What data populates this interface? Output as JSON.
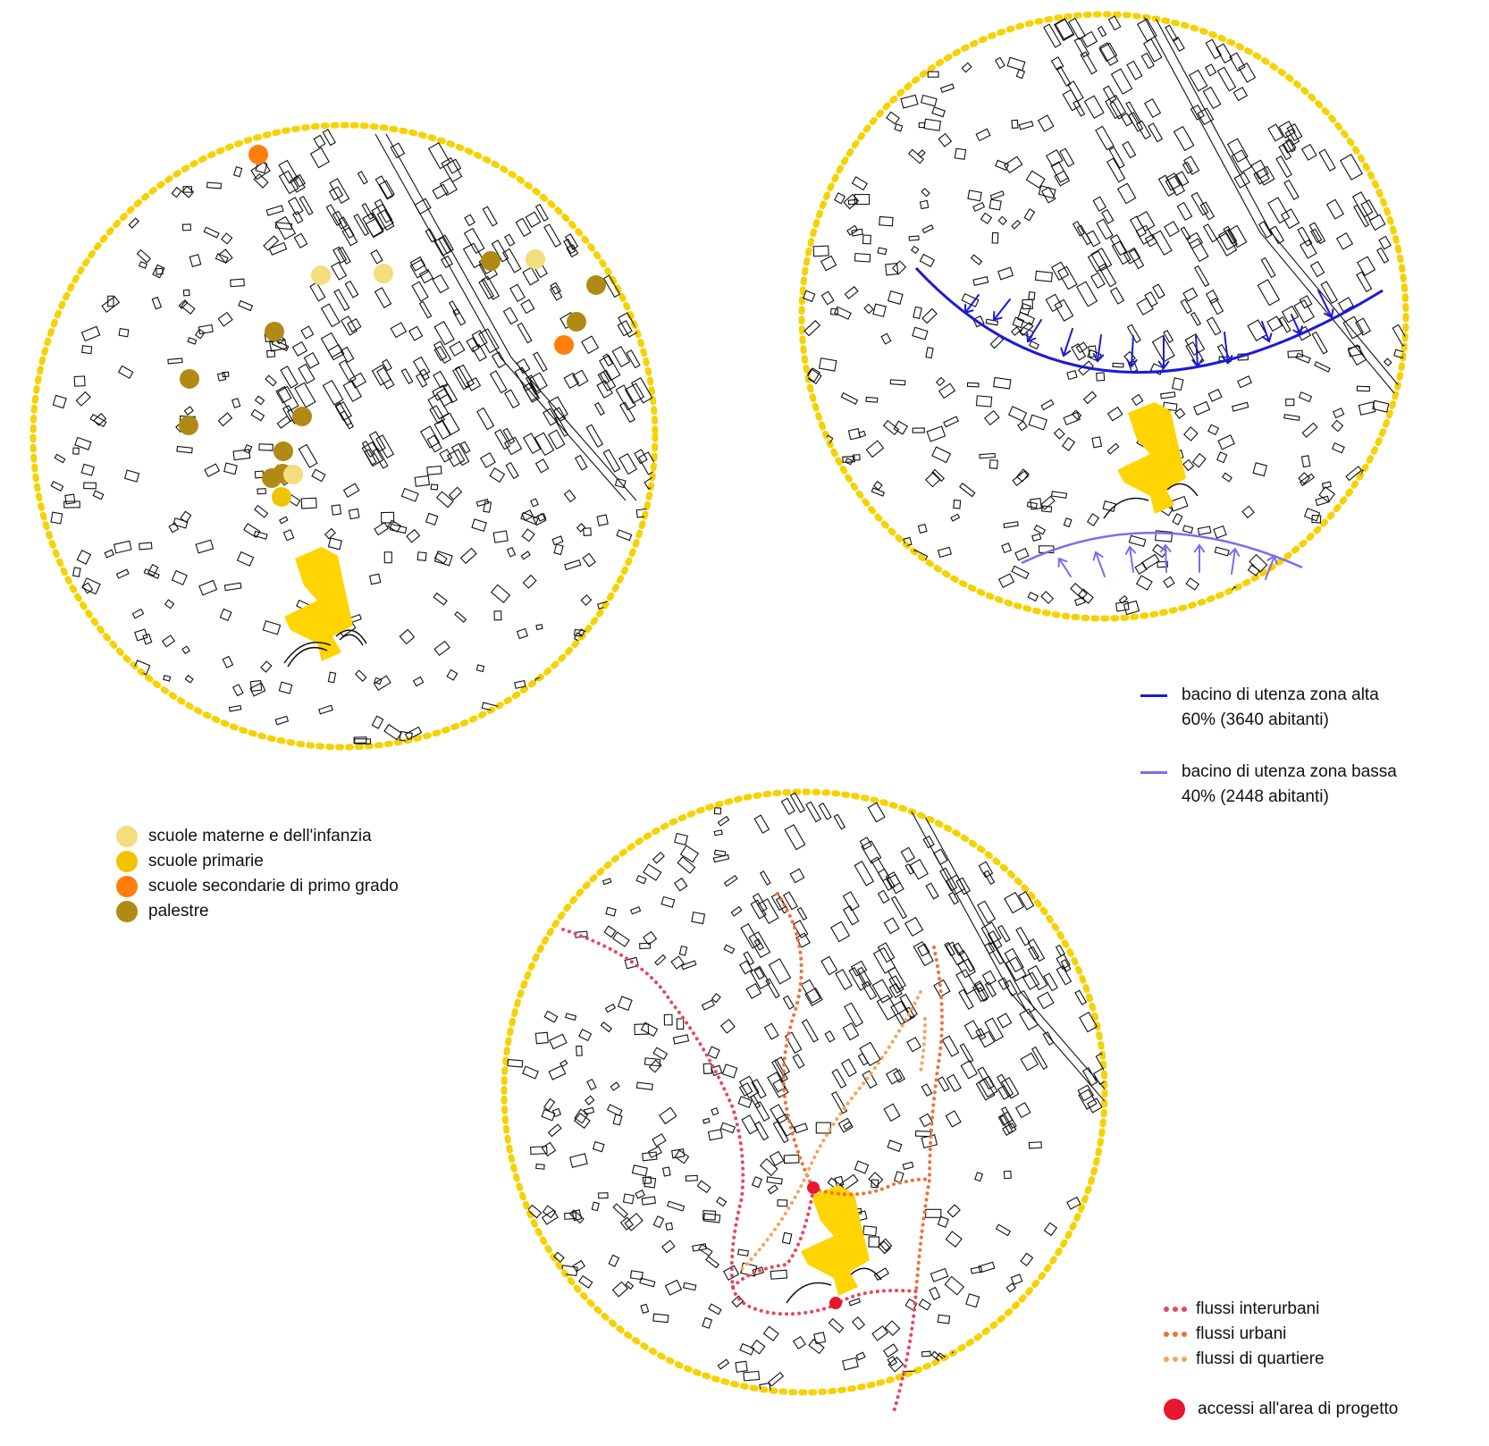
{
  "colors": {
    "ring": "#f5d200",
    "project_area": "#ffd400",
    "buildings": "#111111",
    "scuole_materne": "#f3dd7c",
    "scuole_primarie": "#f0c400",
    "scuole_secondarie": "#ff7f0a",
    "palestre": "#b08a12",
    "bacino_alta": "#1a1ad8",
    "bacino_bassa": "#7b6cf2",
    "flussi_interurbani": "#e8475d",
    "flussi_urbani": "#f0703a",
    "flussi_quartiere": "#f5a35a",
    "accessi": "#e8172f"
  },
  "map1": {
    "legend": [
      {
        "label": "scuole materne e dell'infanzia",
        "color": "#f3dd7c"
      },
      {
        "label": "scuole primarie",
        "color": "#f0c400"
      },
      {
        "label": "scuole secondarie di primo grado",
        "color": "#ff7f0a"
      },
      {
        "label": "palestre",
        "color": "#b08a12"
      }
    ]
  },
  "map2": {
    "legend": [
      {
        "label": "bacino di utenza zona alta",
        "detail": "60% (3640 abitanti)",
        "color": "#1a1ad8"
      },
      {
        "label": "bacino di utenza zona bassa",
        "detail": "40% (2448 abitanti)",
        "color": "#7b6cf2"
      }
    ]
  },
  "map3": {
    "legend": [
      {
        "label": "flussi interurbani",
        "color": "#e8475d"
      },
      {
        "label": "flussi urbani",
        "color": "#f0703a"
      },
      {
        "label": "flussi di quartiere",
        "color": "#f5a35a"
      }
    ],
    "access_label": "accessi all'area di progetto",
    "access_color": "#e8172f"
  }
}
